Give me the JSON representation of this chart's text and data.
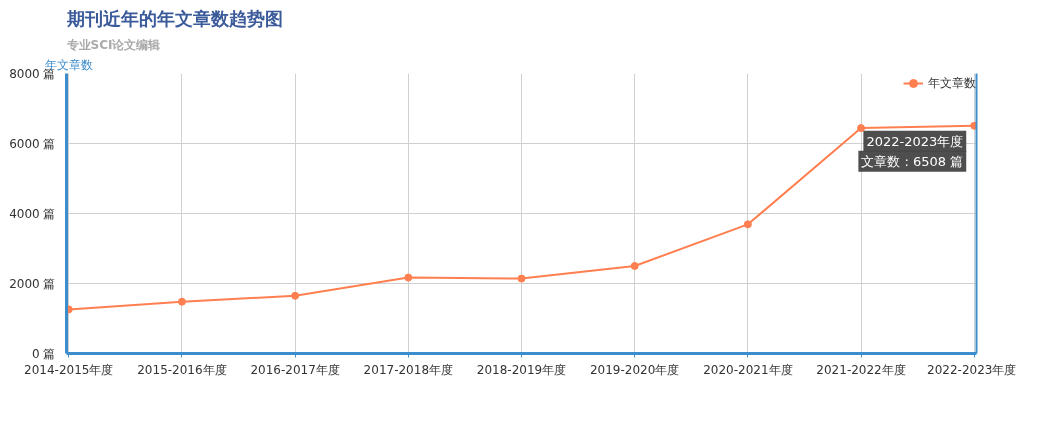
{
  "chart_data": {
    "type": "line",
    "title": "期刊近年的年文章数趋势图",
    "subtitle": "专业SCI论文编辑",
    "ylabel": "年文章数",
    "categories": [
      "2014-2015年度",
      "2015-2016年度",
      "2016-2017年度",
      "2017-2018年度",
      "2018-2019年度",
      "2019-2020年度",
      "2020-2021年度",
      "2021-2022年度",
      "2022-2023年度"
    ],
    "series": [
      {
        "name": "年文章数",
        "color": "#ff7f50",
        "values": [
          1260,
          1480,
          1650,
          2170,
          2140,
          2500,
          3690,
          6440,
          6508
        ]
      }
    ],
    "ylim": [
      0,
      8000
    ],
    "yticks": [
      {
        "value": 0,
        "label": "0 篇"
      },
      {
        "value": 2000,
        "label": "2000 篇"
      },
      {
        "value": 4000,
        "label": "4000 篇"
      },
      {
        "value": 6000,
        "label": "6000 篇"
      },
      {
        "value": 8000,
        "label": "8000 篇"
      }
    ],
    "annotations": [
      {
        "text": "2022-2023年度",
        "x": "2022-2023年度",
        "y": 6508
      },
      {
        "text": "文章数 : 6508 篇",
        "x": "2022-2023年度",
        "y": 6508
      }
    ],
    "grid": true,
    "legend": "top right",
    "marker": "circle",
    "line_style": "solid"
  }
}
